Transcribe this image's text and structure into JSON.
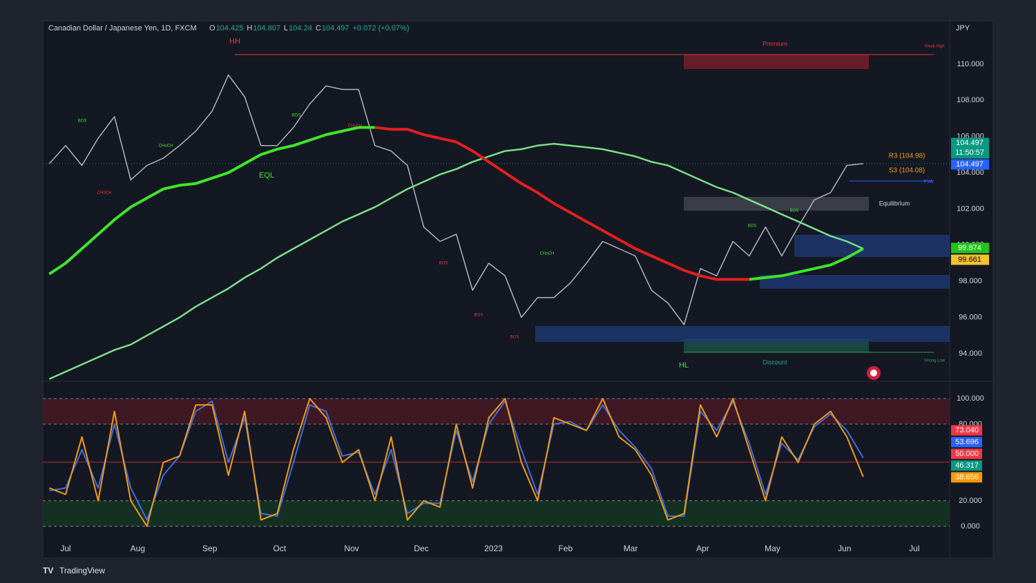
{
  "chart_data": [
    {
      "type": "line",
      "title": "Canadian Dollar / Japanese Yen, 1D, FXCM",
      "ohlc": [
        {
          "key": "O",
          "value": 104.425
        },
        {
          "key": "H",
          "value": 104.607
        },
        {
          "key": "L",
          "value": 104.24
        },
        {
          "key": "C",
          "value": 104.497
        }
      ],
      "change": "+0.072 (+0.07%)",
      "currency": "JPY",
      "x": [
        -7,
        0,
        7,
        14,
        21,
        28,
        35,
        42,
        49,
        56,
        63,
        70,
        77,
        84,
        91,
        98,
        105,
        112,
        119,
        126,
        133,
        140,
        147,
        154,
        161,
        168,
        175,
        182,
        189,
        196,
        203,
        210,
        217,
        224,
        231,
        238,
        245,
        252,
        259,
        266,
        273,
        280,
        287,
        294,
        301,
        308,
        315,
        322,
        329,
        336,
        343
      ],
      "xlim": [
        -9.8,
        380.2
      ],
      "ylim": [
        92.47,
        112.4
      ],
      "yticks": [
        {
          "value": 94,
          "label": "94.000"
        },
        {
          "value": 96,
          "label": "96.000"
        },
        {
          "value": 98,
          "label": "98.000"
        },
        {
          "value": 100,
          "label": "100.000"
        },
        {
          "value": 102,
          "label": "102.000"
        },
        {
          "value": 104,
          "label": "104.000"
        },
        {
          "value": 106,
          "label": "106.000"
        },
        {
          "value": 108,
          "label": "108.000"
        },
        {
          "value": 110,
          "label": "110.000"
        }
      ],
      "grid": false,
      "series": [
        {
          "color": "#b2b5be",
          "values": [
            104.5,
            105.5,
            104.4,
            105.9,
            107.1,
            103.6,
            104.4,
            104.8,
            105.5,
            106.3,
            107.4,
            109.4,
            108.2,
            105.5,
            105.5,
            106.5,
            107.8,
            108.8,
            108.6,
            108.6,
            105.5,
            105.2,
            104.4,
            101,
            100.2,
            100.6,
            97.5,
            99,
            98.3,
            96,
            97.1,
            97.1,
            97.9,
            99,
            100.2,
            99.8,
            99.4,
            97.5,
            96.8,
            95.6,
            98.7,
            98.3,
            100.2,
            99.4,
            101,
            99.4,
            101,
            102.5,
            102.9,
            104.4,
            104.5
          ]
        },
        {
          "color": "#7ddf8a",
          "values": [
            92.6,
            93.0,
            93.4,
            93.8,
            94.2,
            94.5,
            95.0,
            95.5,
            96.0,
            96.6,
            97.1,
            97.6,
            98.2,
            98.7,
            99.3,
            99.8,
            100.3,
            100.8,
            101.3,
            101.7,
            102.1,
            102.6,
            103.1,
            103.5,
            103.9,
            104.2,
            104.6,
            104.9,
            105.2,
            105.3,
            105.5,
            105.6,
            105.5,
            105.4,
            105.3,
            105.1,
            104.9,
            104.6,
            104.4,
            104.0,
            103.6,
            103.2,
            102.9,
            102.5,
            102.1,
            101.7,
            101.3,
            100.9,
            100.5,
            100.2,
            99.8
          ]
        },
        {
          "color": "#3ee62b",
          "values": [
            98.4,
            99.0,
            99.8,
            100.6,
            101.4,
            102.1,
            102.6,
            103.1,
            103.3,
            103.4,
            103.7,
            104.0,
            104.5,
            105.0,
            105.3,
            105.5,
            105.8,
            106.1,
            106.3,
            106.5,
            106.5,
            null,
            null,
            null,
            null,
            null,
            null,
            null,
            null,
            null,
            null,
            null,
            null,
            null,
            null,
            null,
            null,
            null,
            null,
            null,
            null,
            null,
            null,
            98.1,
            98.2,
            98.3,
            98.5,
            98.7,
            98.9,
            99.3,
            99.8
          ]
        },
        {
          "color": "#e51e1e",
          "values": [
            null,
            null,
            null,
            null,
            null,
            null,
            null,
            null,
            null,
            null,
            null,
            null,
            null,
            null,
            null,
            null,
            null,
            null,
            null,
            null,
            106.5,
            106.4,
            106.4,
            106.1,
            105.9,
            105.7,
            105.2,
            104.6,
            104.0,
            103.4,
            102.9,
            102.3,
            101.8,
            101.3,
            100.8,
            100.3,
            99.8,
            99.4,
            99.0,
            98.6,
            98.3,
            98.1,
            98.1,
            98.1,
            null,
            null,
            null,
            null,
            null,
            null,
            null
          ]
        }
      ],
      "price_labels": [
        104.497,
        104.497,
        99.874,
        99.661
      ],
      "price_label_colors": [
        "#089981",
        "#2962ff",
        "#22c41a",
        "#f2c12e"
      ],
      "countdown": "11:50:57",
      "annotations": [
        "HH",
        "EQL",
        "HL",
        "Premium",
        "Discount",
        "Equilibrium",
        "Weak High",
        "Strong Low",
        "PWL",
        "R3 (104.98)",
        "S3 (104.08)"
      ],
      "structure_labels": [
        "BOS",
        "CHoCH"
      ]
    },
    {
      "type": "line",
      "x": [
        -7,
        0,
        7,
        14,
        21,
        28,
        35,
        42,
        49,
        56,
        63,
        70,
        77,
        84,
        91,
        98,
        105,
        112,
        119,
        126,
        133,
        140,
        147,
        154,
        161,
        168,
        175,
        182,
        189,
        196,
        203,
        210,
        217,
        224,
        231,
        238,
        245,
        252,
        259,
        266,
        273,
        280,
        287,
        294,
        301,
        308,
        315,
        322,
        329,
        336,
        343
      ],
      "xlim": [
        -9.8,
        380.2
      ],
      "xticks": [
        {
          "value": 0,
          "label": "Jul"
        },
        {
          "value": 31,
          "label": "Aug"
        },
        {
          "value": 62,
          "label": "Sep"
        },
        {
          "value": 92,
          "label": "Oct"
        },
        {
          "value": 123,
          "label": "Nov"
        },
        {
          "value": 153,
          "label": "Dec"
        },
        {
          "value": 184,
          "label": "2023"
        },
        {
          "value": 215,
          "label": "Feb"
        },
        {
          "value": 243,
          "label": "Mar"
        },
        {
          "value": 274,
          "label": "Apr"
        },
        {
          "value": 304,
          "label": "May"
        },
        {
          "value": 335,
          "label": "Jun"
        },
        {
          "value": 365,
          "label": "Jul"
        }
      ],
      "ylim": [
        -24.9,
        113.5
      ],
      "yticks": [
        {
          "value": 0,
          "label": "0.000"
        },
        {
          "value": 20,
          "label": "20.000"
        },
        {
          "value": 80,
          "label": "80.000"
        },
        {
          "value": 100,
          "label": "100.000"
        }
      ],
      "series": [
        {
          "color": "#3f6fe0",
          "values": [
            28,
            30,
            60,
            30,
            80,
            30,
            5,
            40,
            55,
            90,
            98,
            50,
            85,
            10,
            8,
            50,
            95,
            90,
            55,
            58,
            25,
            60,
            10,
            18,
            18,
            75,
            35,
            80,
            98,
            60,
            25,
            80,
            82,
            75,
            95,
            75,
            62,
            45,
            8,
            8,
            90,
            75,
            98,
            65,
            25,
            65,
            52,
            78,
            88,
            75,
            53.696
          ]
        },
        {
          "color": "#f39c12",
          "values": [
            30,
            25,
            70,
            20,
            90,
            20,
            0,
            50,
            55,
            95,
            95,
            40,
            90,
            5,
            10,
            60,
            100,
            85,
            50,
            60,
            20,
            70,
            5,
            20,
            15,
            80,
            30,
            85,
            100,
            50,
            20,
            85,
            80,
            75,
            100,
            70,
            60,
            40,
            5,
            10,
            95,
            70,
            100,
            60,
            20,
            70,
            50,
            80,
            90,
            70,
            38.656
          ]
        }
      ],
      "value_labels": [
        {
          "value": 73.04,
          "label": "73.040"
        },
        {
          "value": 53.696,
          "label": "53.696"
        },
        {
          "value": 50,
          "label": "50.000"
        },
        {
          "value": 46.317,
          "label": "46.317"
        },
        {
          "value": 38.656,
          "label": "38.656"
        }
      ],
      "value_label_colors": [
        "#f23645",
        "#2962ff",
        "#f23645",
        "#089981",
        "#ff9800"
      ]
    },
    {
      "brand": "TradingView"
    }
  ]
}
